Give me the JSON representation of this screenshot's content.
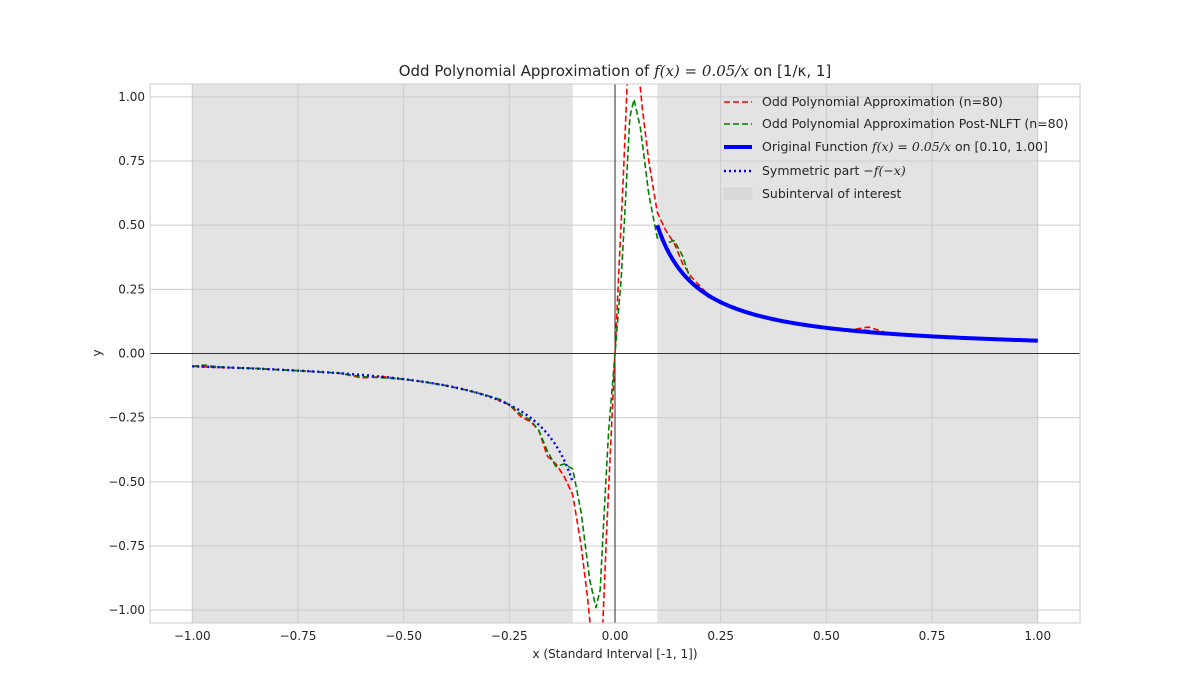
{
  "chart_data": {
    "type": "line",
    "title": {
      "prefix": "Odd Polynomial Approximation of ",
      "math": "f(x) = 0.05/x",
      "mid": " on ",
      "interval": "[1/κ, 1]"
    },
    "xlabel": "x (Standard Interval [-1, 1])",
    "ylabel": "y",
    "xlim": [
      -1.1,
      1.1
    ],
    "ylim": [
      -1.05,
      1.05
    ],
    "xticks": [
      -1.0,
      -0.75,
      -0.5,
      -0.25,
      0.0,
      0.25,
      0.5,
      0.75,
      1.0
    ],
    "xtick_labels": [
      "−1.00",
      "−0.75",
      "−0.50",
      "−0.25",
      "0.00",
      "0.25",
      "0.50",
      "0.75",
      "1.00"
    ],
    "yticks": [
      -1.0,
      -0.75,
      -0.5,
      -0.25,
      0.0,
      0.25,
      0.5,
      0.75,
      1.0
    ],
    "ytick_labels": [
      "−1.00",
      "−0.75",
      "−0.50",
      "−0.25",
      "0.00",
      "0.25",
      "0.50",
      "0.75",
      "1.00"
    ],
    "grid": true,
    "legend_position": "top-right",
    "shaded_regions": [
      [
        -1.0,
        -0.1
      ],
      [
        0.1,
        1.0
      ]
    ],
    "series": [
      {
        "name": "Odd Polynomial Approximation (n=80)",
        "color": "#ff0000",
        "style": "dashed",
        "x": [
          -1.0,
          -0.95,
          -0.9,
          -0.85,
          -0.8,
          -0.75,
          -0.7,
          -0.65,
          -0.6,
          -0.55,
          -0.5,
          -0.45,
          -0.4,
          -0.35,
          -0.3,
          -0.27,
          -0.25,
          -0.22,
          -0.2,
          -0.18,
          -0.16,
          -0.14,
          -0.12,
          -0.1,
          -0.08,
          -0.065,
          -0.05,
          -0.04,
          -0.03,
          -0.02,
          -0.01,
          0.0,
          0.01,
          0.02,
          0.03,
          0.04,
          0.05,
          0.065,
          0.08,
          0.1,
          0.12,
          0.14,
          0.16,
          0.18,
          0.2,
          0.22,
          0.25,
          0.27,
          0.3,
          0.35,
          0.4,
          0.45,
          0.5,
          0.55,
          0.6,
          0.65,
          0.7,
          0.75,
          0.8,
          0.85,
          0.9,
          0.95,
          1.0
        ],
        "y": [
          -0.05,
          -0.054,
          -0.056,
          -0.058,
          -0.063,
          -0.067,
          -0.072,
          -0.077,
          -0.095,
          -0.09,
          -0.1,
          -0.111,
          -0.125,
          -0.143,
          -0.165,
          -0.185,
          -0.2,
          -0.25,
          -0.265,
          -0.3,
          -0.4,
          -0.43,
          -0.48,
          -0.55,
          -0.75,
          -0.95,
          -1.2,
          -1.25,
          -1.1,
          -0.7,
          -0.35,
          0.0,
          0.35,
          0.7,
          1.1,
          1.25,
          1.2,
          0.95,
          0.75,
          0.55,
          0.48,
          0.43,
          0.35,
          0.3,
          0.265,
          0.23,
          0.2,
          0.185,
          0.165,
          0.143,
          0.125,
          0.111,
          0.1,
          0.09,
          0.103,
          0.077,
          0.072,
          0.067,
          0.063,
          0.058,
          0.056,
          0.054,
          0.05
        ]
      },
      {
        "name": "Odd Polynomial Approximation Post-NLFT (n=80)",
        "color": "#008000",
        "style": "dashed",
        "x": [
          -1.0,
          -0.97,
          -0.95,
          -0.9,
          -0.85,
          -0.8,
          -0.75,
          -0.7,
          -0.65,
          -0.6,
          -0.55,
          -0.5,
          -0.45,
          -0.4,
          -0.35,
          -0.3,
          -0.27,
          -0.25,
          -0.22,
          -0.2,
          -0.18,
          -0.16,
          -0.14,
          -0.12,
          -0.1,
          -0.08,
          -0.06,
          -0.045,
          -0.035,
          -0.025,
          -0.015,
          0.0,
          0.015,
          0.025,
          0.035,
          0.045,
          0.06,
          0.08,
          0.1,
          0.12,
          0.14,
          0.16,
          0.18,
          0.2,
          0.22,
          0.25,
          0.27,
          0.3,
          0.35,
          0.4,
          0.45,
          0.5,
          0.55,
          0.6,
          0.65,
          0.7,
          0.75,
          0.8,
          0.85,
          0.9,
          0.95,
          1.0
        ],
        "y": [
          -0.05,
          -0.045,
          -0.05,
          -0.056,
          -0.058,
          -0.063,
          -0.067,
          -0.072,
          -0.077,
          -0.09,
          -0.095,
          -0.1,
          -0.111,
          -0.125,
          -0.143,
          -0.165,
          -0.18,
          -0.2,
          -0.24,
          -0.26,
          -0.3,
          -0.38,
          -0.44,
          -0.43,
          -0.45,
          -0.62,
          -0.88,
          -0.99,
          -0.92,
          -0.6,
          -0.3,
          0.0,
          0.3,
          0.6,
          0.92,
          0.99,
          0.88,
          0.62,
          0.45,
          0.43,
          0.44,
          0.38,
          0.28,
          0.26,
          0.22,
          0.2,
          0.18,
          0.165,
          0.143,
          0.125,
          0.111,
          0.1,
          0.095,
          0.09,
          0.077,
          0.072,
          0.067,
          0.063,
          0.058,
          0.056,
          0.05,
          0.05
        ]
      },
      {
        "name": "Original Function f(x) = 0.05/x on [0.10, 1.00]",
        "legend_prefix": "Original Function ",
        "legend_math": "f(x) = 0.05/x",
        "legend_suffix": " on [0.10, 1.00]",
        "color": "#0000ff",
        "style": "solid-thick",
        "formula_coefficient": 0.05,
        "domain": [
          0.1,
          1.0
        ]
      },
      {
        "name": "Symmetric part −f(−x)",
        "legend_prefix": "Symmetric part ",
        "legend_math": "−f(−x)",
        "color": "#0000ff",
        "style": "dotted",
        "formula_coefficient": 0.05,
        "domain": [
          -1.0,
          -0.1
        ]
      }
    ],
    "legend_extra": "Subinterval of interest"
  }
}
